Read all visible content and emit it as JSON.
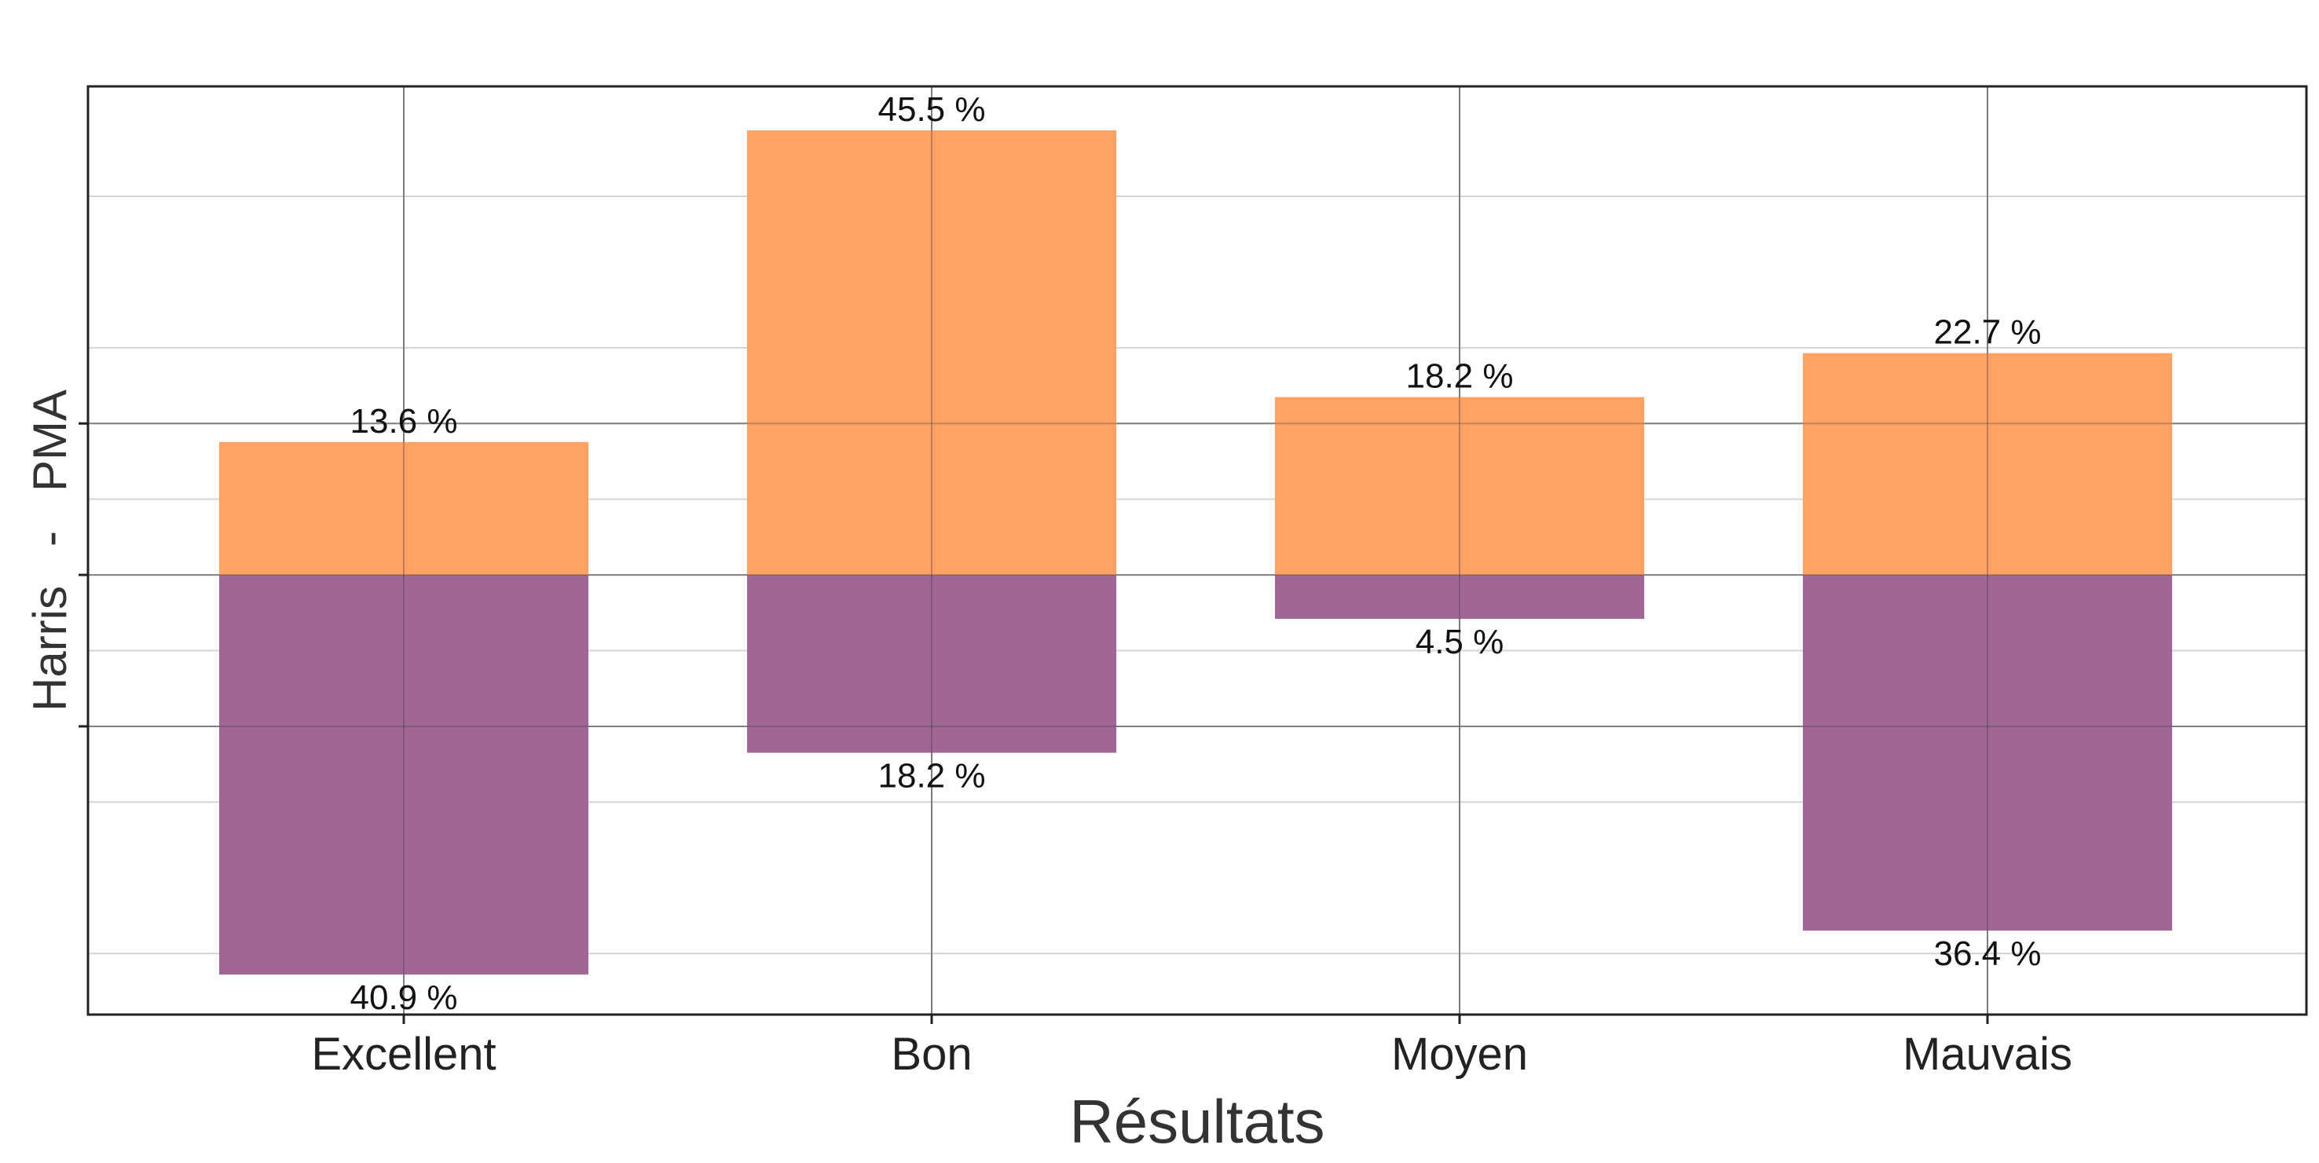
{
  "chart_data": {
    "type": "bar",
    "categories": [
      "Excellent",
      "Bon",
      "Moyen",
      "Mauvais"
    ],
    "series": [
      {
        "values": [
          13.6,
          45.5,
          18.2,
          22.7
        ],
        "labels": [
          "13.6 %",
          "45.5 %",
          "18.2 %",
          "22.7 %"
        ],
        "color": "#FFA263"
      },
      {
        "values": [
          40.9,
          18.2,
          4.5,
          36.4
        ],
        "labels": [
          "40.9 %",
          "18.2 %",
          "4.5 %",
          "36.4 %"
        ],
        "color": "#A26695"
      }
    ],
    "orientation": "diverging",
    "xlabel": "Résultats",
    "ylabel": "Harris   -   PMA",
    "ylim": [
      -45,
      50
    ],
    "y_tick_labels": "none",
    "grid": true,
    "legend": "none"
  }
}
